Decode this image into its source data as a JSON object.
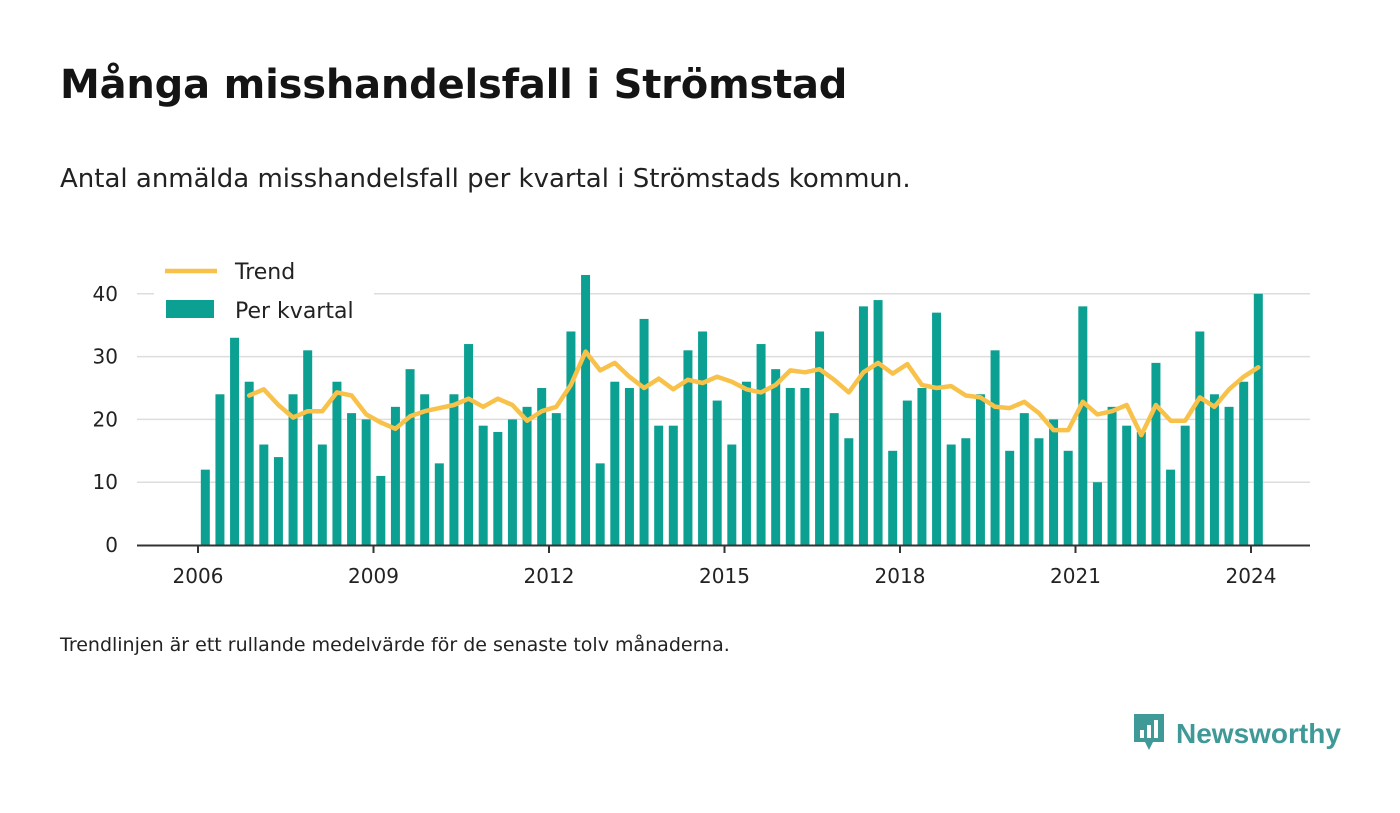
{
  "header": {
    "title": "Många misshandelsfall i Strömstad",
    "subtitle": "Antal anmälda misshandelsfall per kvartal i Strömstads kommun."
  },
  "note": "Trendlinjen är ett rullande medelvärde för de senaste tolv månaderna.",
  "brand": {
    "name": "Newsworthy",
    "icon": "newsworthy-logo-icon"
  },
  "colors": {
    "bar": "#0ca093",
    "trend": "#f8c24a",
    "grid": "#dddddd",
    "axis": "#333333",
    "brand": "#3f9a97"
  },
  "chart_data": {
    "type": "bar",
    "xaxis_type": "date",
    "ylim": [
      0,
      45
    ],
    "yticks": [
      0,
      10,
      20,
      30,
      40
    ],
    "xticks": [
      "2006",
      "2009",
      "2012",
      "2015",
      "2018",
      "2021",
      "2024"
    ],
    "grid": true,
    "legend_position": "top-left",
    "start_quarter": "2006-Q1",
    "series": [
      {
        "name": "Per kvartal",
        "type": "bar",
        "values": [
          12,
          24,
          33,
          26,
          16,
          14,
          24,
          31,
          16,
          26,
          21,
          20,
          11,
          22,
          28,
          24,
          13,
          24,
          32,
          19,
          18,
          20,
          22,
          25,
          21,
          34,
          43,
          13,
          26,
          25,
          36,
          19,
          19,
          31,
          34,
          23,
          16,
          26,
          32,
          28,
          25,
          25,
          34,
          21,
          17,
          38,
          39,
          15,
          23,
          25,
          37,
          16,
          17,
          24,
          31,
          15,
          21,
          17,
          20,
          15,
          38,
          10,
          22,
          19,
          18,
          29,
          12,
          19,
          34,
          24,
          22,
          26,
          40
        ]
      },
      {
        "name": "Trend",
        "type": "line",
        "values": [
          null,
          null,
          null,
          23.8,
          24.8,
          22.3,
          20.3,
          21.3,
          21.3,
          24.3,
          23.8,
          20.8,
          19.5,
          18.5,
          20.5,
          21.3,
          21.8,
          22.3,
          23.3,
          22.0,
          23.3,
          22.3,
          19.8,
          21.3,
          22.0,
          25.5,
          30.8,
          27.8,
          29.0,
          26.8,
          25.0,
          26.5,
          24.8,
          26.3,
          25.8,
          26.8,
          26.0,
          24.8,
          24.3,
          25.5,
          27.8,
          27.5,
          28.0,
          26.3,
          24.3,
          27.5,
          29.0,
          27.3,
          28.8,
          25.5,
          25.0,
          25.3,
          23.8,
          23.5,
          22.0,
          21.8,
          22.8,
          21.0,
          18.3,
          18.3,
          22.8,
          20.8,
          21.3,
          22.3,
          17.5,
          22.3,
          19.8,
          19.8,
          23.5,
          22.0,
          24.8,
          26.8,
          28.3
        ]
      }
    ]
  }
}
